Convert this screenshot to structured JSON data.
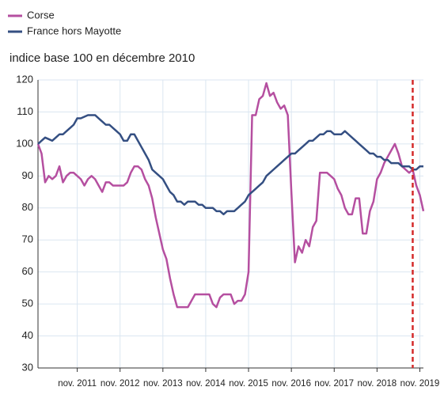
{
  "chart_data": {
    "type": "line",
    "subtitle": "indice base 100 en décembre 2010",
    "categories": [
      null,
      null,
      null,
      null,
      null,
      null,
      null,
      null,
      null,
      null,
      null,
      "nov. 2011",
      null,
      null,
      null,
      null,
      null,
      null,
      null,
      null,
      null,
      null,
      null,
      "nov. 2012",
      null,
      null,
      null,
      null,
      null,
      null,
      null,
      null,
      null,
      null,
      null,
      "nov. 2013",
      null,
      null,
      null,
      null,
      null,
      null,
      null,
      null,
      null,
      null,
      null,
      "nov. 2014",
      null,
      null,
      null,
      null,
      null,
      null,
      null,
      null,
      null,
      null,
      null,
      "nov. 2015",
      null,
      null,
      null,
      null,
      null,
      null,
      null,
      null,
      null,
      null,
      null,
      "nov. 2016",
      null,
      null,
      null,
      null,
      null,
      null,
      null,
      null,
      null,
      null,
      null,
      "nov. 2017",
      null,
      null,
      null,
      null,
      null,
      null,
      null,
      null,
      null,
      null,
      null,
      "nov. 2018",
      null,
      null,
      null,
      null,
      null,
      null,
      null,
      null,
      null,
      null,
      null,
      "nov. 2019",
      null
    ],
    "series": [
      {
        "name": "Corse",
        "color": "#b54fa0",
        "values": [
          100,
          97,
          88,
          90,
          89,
          90,
          93,
          88,
          90,
          91,
          91,
          90,
          89,
          87,
          89,
          90,
          89,
          87,
          85,
          88,
          88,
          87,
          87,
          87,
          87,
          88,
          91,
          93,
          93,
          92,
          89,
          87,
          83,
          77,
          72,
          67,
          64,
          58,
          53,
          49,
          49,
          49,
          49,
          51,
          53,
          53,
          53,
          53,
          53,
          50,
          49,
          52,
          53,
          53,
          53,
          50,
          51,
          51,
          53,
          60,
          109,
          109,
          114,
          115,
          119,
          115,
          116,
          113,
          111,
          112,
          109,
          85,
          63,
          68,
          66,
          70,
          68,
          74,
          76,
          91,
          91,
          91,
          90,
          89,
          86,
          84,
          80,
          78,
          78,
          83,
          83,
          72,
          72,
          79,
          82,
          89,
          91,
          94,
          96,
          98,
          100,
          97,
          93,
          92,
          91,
          92,
          87,
          84,
          79
        ]
      },
      {
        "name": "France hors Mayotte",
        "color": "#344f82",
        "values": [
          100,
          101,
          102,
          101.5,
          101,
          102,
          103,
          103,
          104,
          105,
          106,
          108,
          108,
          108.5,
          109,
          109,
          109,
          108,
          107,
          106,
          106,
          105,
          104,
          103,
          101,
          101,
          103,
          103,
          101,
          99,
          97,
          95,
          92,
          91,
          90,
          89,
          87,
          85,
          84,
          82,
          82,
          81,
          82,
          82,
          82,
          81,
          81,
          80,
          80,
          80,
          79,
          79,
          78,
          79,
          79,
          79,
          80,
          81,
          82,
          84,
          85,
          86,
          87,
          88,
          90,
          91,
          92,
          93,
          94,
          95,
          96,
          97,
          97,
          98,
          99,
          100,
          101,
          101,
          102,
          103,
          103,
          104,
          104,
          103,
          103,
          103,
          104,
          103,
          102,
          101,
          100,
          99,
          98,
          97,
          97,
          96,
          96,
          95,
          95,
          94,
          94,
          94,
          93,
          93,
          93,
          92,
          92,
          93,
          93
        ]
      }
    ],
    "ylim": [
      30,
      120
    ],
    "yticks": [
      30,
      40,
      50,
      60,
      70,
      80,
      90,
      100,
      110,
      120
    ],
    "grid": true,
    "reference_line": {
      "x": 105,
      "color": "#d42a2a"
    }
  }
}
